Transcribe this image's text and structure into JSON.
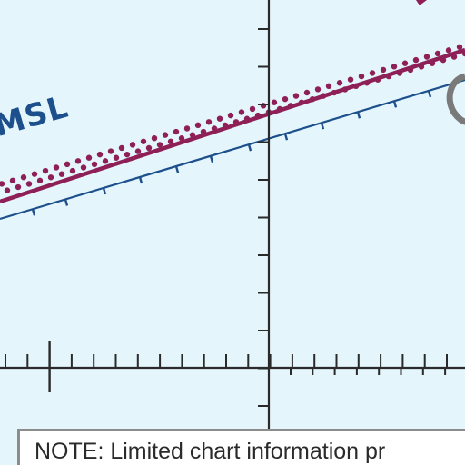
{
  "map": {
    "airspace_label": "MSL",
    "note_text": "NOTE: Limited chart information pr",
    "colors": {
      "background": "#e4f6fc",
      "boundary_magenta": "#8e2057",
      "boundary_blue": "#1c4f8c",
      "grid_line": "#2a2a2a",
      "note_border": "#8c8c8c"
    }
  }
}
